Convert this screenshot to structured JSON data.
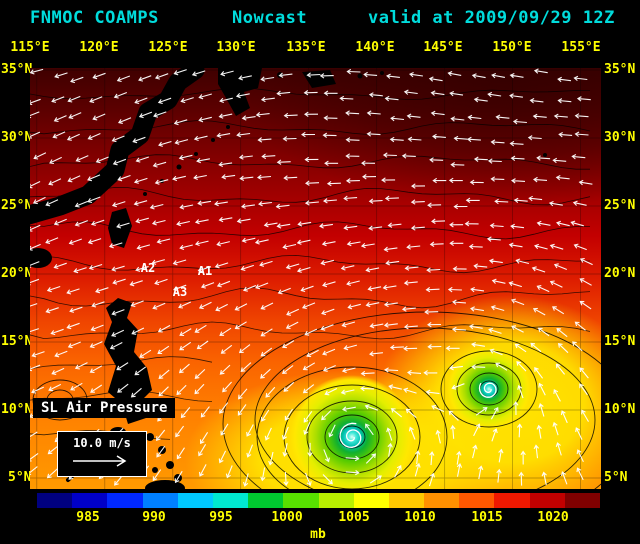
{
  "title": {
    "model": "FNMOC COAMPS",
    "product": "Nowcast",
    "valid": "valid at 2009/09/29 12Z"
  },
  "axes": {
    "lon": [
      "115°E",
      "120°E",
      "125°E",
      "130°E",
      "135°E",
      "140°E",
      "145°E",
      "150°E",
      "155°E"
    ],
    "lat": [
      "35°N",
      "30°N",
      "25°N",
      "20°N",
      "15°N",
      "10°N",
      "5°N"
    ]
  },
  "annotations": [
    {
      "label": "A1"
    },
    {
      "label": "A2"
    },
    {
      "label": "A3"
    }
  ],
  "legend": {
    "field_label": "SL Air Pressure",
    "wind_scale_label": "10.0 m/s"
  },
  "colorbar": {
    "unit": "mb",
    "ticks": [
      "985",
      "990",
      "995",
      "1000",
      "1005",
      "1010",
      "1015",
      "1020"
    ],
    "colors": [
      "#000080",
      "#0000c8",
      "#0028ff",
      "#0080ff",
      "#00c8ff",
      "#00e8d0",
      "#00c830",
      "#58e000",
      "#b8f000",
      "#ffff00",
      "#ffc800",
      "#ff9000",
      "#ff5800",
      "#f01800",
      "#c00000",
      "#800000"
    ]
  },
  "colors": {
    "title_text": "#00dcdc",
    "axis_text": "#ffff00",
    "wind_arrows": "#ffffff",
    "background": "#000000"
  }
}
